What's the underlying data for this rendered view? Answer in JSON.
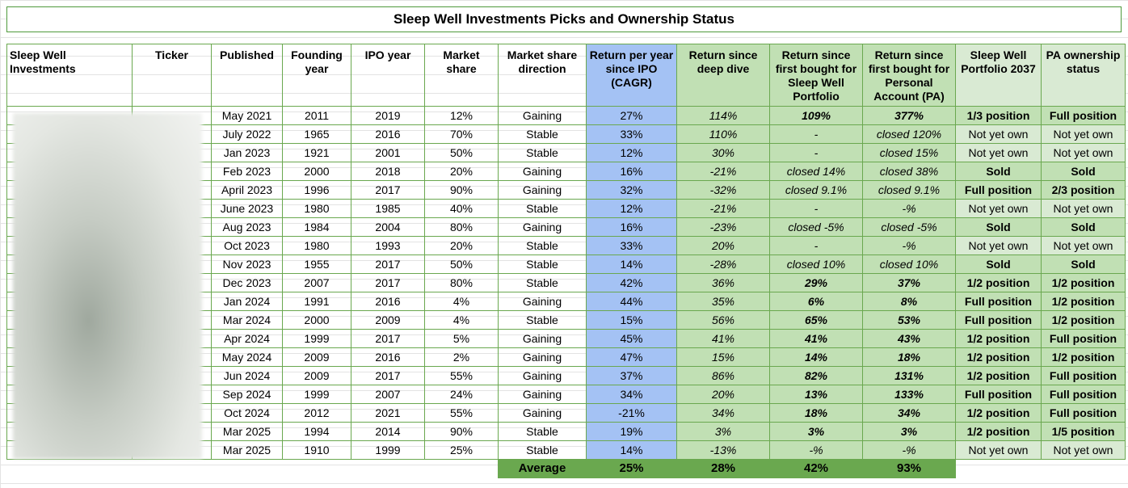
{
  "title": "Sleep Well Investments Picks and Ownership Status",
  "headers": [
    "Sleep Well Investments",
    "Ticker",
    "Published",
    "Founding year",
    "IPO year",
    "Market share",
    "Market share direction",
    "Return per year since IPO (CAGR)",
    "Return since deep dive",
    "Return since first bought for Sleep Well Portfolio",
    "Return since first bought for Personal Account (PA)",
    "Sleep Well Portfolio 2037",
    "PA ownership status"
  ],
  "rows": [
    {
      "published": "May 2021",
      "founding": "2011",
      "ipo": "2019",
      "share": "12%",
      "direction": "Gaining",
      "cagr": "27%",
      "deep": "114%",
      "sw": "109%",
      "pa": "377%",
      "swp": "1/3 position",
      "pas": "Full position"
    },
    {
      "published": "July 2022",
      "founding": "1965",
      "ipo": "2016",
      "share": "70%",
      "direction": "Stable",
      "cagr": "33%",
      "deep": "110%",
      "sw": "-",
      "pa": "closed 120%",
      "swp": "Not yet own",
      "pas": "Not yet own"
    },
    {
      "published": "Jan 2023",
      "founding": "1921",
      "ipo": "2001",
      "share": "50%",
      "direction": "Stable",
      "cagr": "12%",
      "deep": "30%",
      "sw": "-",
      "pa": "closed 15%",
      "swp": "Not yet own",
      "pas": "Not yet own"
    },
    {
      "published": "Feb 2023",
      "founding": "2000",
      "ipo": "2018",
      "share": "20%",
      "direction": "Gaining",
      "cagr": "16%",
      "deep": "-21%",
      "sw": "closed 14%",
      "pa": "closed 38%",
      "swp": "Sold",
      "pas": "Sold"
    },
    {
      "published": "April 2023",
      "founding": "1996",
      "ipo": "2017",
      "share": "90%",
      "direction": "Gaining",
      "cagr": "32%",
      "deep": "-32%",
      "sw": "closed 9.1%",
      "pa": "closed 9.1%",
      "swp": "Full position",
      "pas": "2/3 position"
    },
    {
      "published": "June 2023",
      "founding": "1980",
      "ipo": "1985",
      "share": "40%",
      "direction": "Stable",
      "cagr": "12%",
      "deep": "-21%",
      "sw": "-",
      "pa": "-%",
      "swp": "Not yet own",
      "pas": "Not yet own"
    },
    {
      "published": "Aug 2023",
      "founding": "1984",
      "ipo": "2004",
      "share": "80%",
      "direction": "Gaining",
      "cagr": "16%",
      "deep": "-23%",
      "sw": "closed -5%",
      "pa": "closed -5%",
      "swp": "Sold",
      "pas": "Sold"
    },
    {
      "published": "Oct 2023",
      "founding": "1980",
      "ipo": "1993",
      "share": "20%",
      "direction": "Stable",
      "cagr": "33%",
      "deep": "20%",
      "sw": "-",
      "pa": "-%",
      "swp": "Not yet own",
      "pas": "Not yet own"
    },
    {
      "published": "Nov 2023",
      "founding": "1955",
      "ipo": "2017",
      "share": "50%",
      "direction": "Stable",
      "cagr": "14%",
      "deep": "-28%",
      "sw": "closed 10%",
      "pa": "closed 10%",
      "swp": "Sold",
      "pas": "Sold"
    },
    {
      "published": "Dec 2023",
      "founding": "2007",
      "ipo": "2017",
      "share": "80%",
      "direction": "Stable",
      "cagr": "42%",
      "deep": "36%",
      "sw": "29%",
      "pa": "37%",
      "swp": "1/2 position",
      "pas": "1/2 position"
    },
    {
      "published": "Jan 2024",
      "founding": "1991",
      "ipo": "2016",
      "share": "4%",
      "direction": "Gaining",
      "cagr": "44%",
      "deep": "35%",
      "sw": "6%",
      "pa": "8%",
      "swp": "Full position",
      "pas": "1/2 position"
    },
    {
      "published": "Mar 2024",
      "founding": "2000",
      "ipo": "2009",
      "share": "4%",
      "direction": "Stable",
      "cagr": "15%",
      "deep": "56%",
      "sw": "65%",
      "pa": "53%",
      "swp": "Full position",
      "pas": "1/2 position"
    },
    {
      "published": "Apr 2024",
      "founding": "1999",
      "ipo": "2017",
      "share": "5%",
      "direction": "Gaining",
      "cagr": "45%",
      "deep": "41%",
      "sw": "41%",
      "pa": "43%",
      "swp": "1/2 position",
      "pas": "Full position"
    },
    {
      "published": "May 2024",
      "founding": "2009",
      "ipo": "2016",
      "share": "2%",
      "direction": "Gaining",
      "cagr": "47%",
      "deep": "15%",
      "sw": "14%",
      "pa": "18%",
      "swp": "1/2 position",
      "pas": "1/2 position"
    },
    {
      "published": "Jun 2024",
      "founding": "2009",
      "ipo": "2017",
      "share": "55%",
      "direction": "Gaining",
      "cagr": "37%",
      "deep": "86%",
      "sw": "82%",
      "pa": "131%",
      "swp": "1/2 position",
      "pas": "Full position"
    },
    {
      "published": "Sep 2024",
      "founding": "1999",
      "ipo": "2007",
      "share": "24%",
      "direction": "Gaining",
      "cagr": "34%",
      "deep": "20%",
      "sw": "13%",
      "pa": "133%",
      "swp": "Full position",
      "pas": "Full position"
    },
    {
      "published": "Oct 2024",
      "founding": "2012",
      "ipo": "2021",
      "share": "55%",
      "direction": "Gaining",
      "cagr": "-21%",
      "deep": "34%",
      "sw": "18%",
      "pa": "34%",
      "swp": "1/2 position",
      "pas": "Full position"
    },
    {
      "published": "Mar 2025",
      "founding": "1994",
      "ipo": "2014",
      "share": "90%",
      "direction": "Stable",
      "cagr": "19%",
      "deep": "3%",
      "sw": "3%",
      "pa": "3%",
      "swp": "1/2 position",
      "pas": "1/5 position"
    },
    {
      "published": "Mar 2025",
      "founding": "1910",
      "ipo": "1999",
      "share": "25%",
      "direction": "Stable",
      "cagr": "14%",
      "deep": "-13%",
      "sw": "-%",
      "pa": "-%",
      "swp": "Not yet own",
      "pas": "Not yet own"
    }
  ],
  "average": {
    "label": "Average",
    "cagr": "25%",
    "deep": "28%",
    "sw": "42%",
    "pa": "93%"
  },
  "colors": {
    "border": "#6aa84f",
    "cagr_bg": "#a4c2f4",
    "green_bg": "#c1e0b4",
    "light_green_bg": "#d9ead3",
    "average_bg": "#6aa84f"
  }
}
